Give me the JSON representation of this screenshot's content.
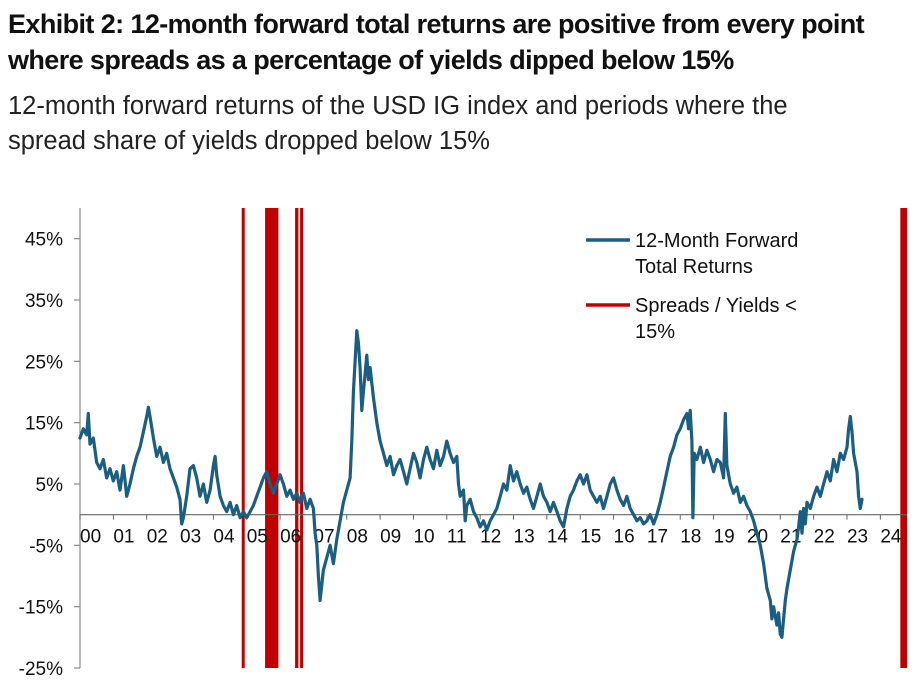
{
  "header": {
    "title": "Exhibit 2: 12-month forward total returns are positive from every point where spreads as a percentage of yields dipped below 15%",
    "subtitle": "12-month forward returns of the USD IG index and periods where the spread share of yields dropped below 15%"
  },
  "chart_data": {
    "type": "line",
    "title": "12-month forward returns of the USD IG index and periods where the spread share of yields dropped below 15%",
    "xlabel": "",
    "ylabel": "",
    "xlim": [
      0,
      24.8
    ],
    "ylim": [
      -25,
      50
    ],
    "y_ticks": [
      45,
      35,
      25,
      15,
      5,
      -5,
      -15,
      -25
    ],
    "y_tick_labels": [
      "45%",
      "35%",
      "25%",
      "15%",
      "5%",
      "-5%",
      "-15%",
      "-25%"
    ],
    "x_ticks": [
      0,
      1,
      2,
      3,
      4,
      5,
      6,
      7,
      8,
      9,
      10,
      11,
      12,
      13,
      14,
      15,
      16,
      17,
      18,
      19,
      20,
      21,
      22,
      23,
      24
    ],
    "x_tick_labels": [
      "00",
      "01",
      "02",
      "03",
      "04",
      "05",
      "06",
      "07",
      "08",
      "09",
      "10",
      "11",
      "12",
      "13",
      "14",
      "15",
      "16",
      "17",
      "18",
      "19",
      "20",
      "21",
      "22",
      "23",
      "24"
    ],
    "legend": {
      "position": "top-right",
      "entries": [
        {
          "label_line1": "12-Month Forward",
          "label_line2": "Total Returns"
        },
        {
          "label_line1": "Spreads / Yields <",
          "label_line2": "15%"
        }
      ]
    },
    "series": [
      {
        "name": "12-Month Forward Total Returns",
        "color": "#1b5e82",
        "points": [
          [
            0.0,
            12.5
          ],
          [
            0.1,
            14.0
          ],
          [
            0.2,
            13.0
          ],
          [
            0.25,
            16.5
          ],
          [
            0.3,
            11.5
          ],
          [
            0.4,
            12.5
          ],
          [
            0.5,
            8.5
          ],
          [
            0.6,
            7.5
          ],
          [
            0.7,
            9.0
          ],
          [
            0.8,
            6.0
          ],
          [
            0.9,
            7.5
          ],
          [
            1.0,
            5.5
          ],
          [
            1.1,
            7.0
          ],
          [
            1.2,
            4.0
          ],
          [
            1.3,
            8.0
          ],
          [
            1.4,
            3.0
          ],
          [
            1.5,
            5.0
          ],
          [
            1.6,
            7.5
          ],
          [
            1.7,
            9.5
          ],
          [
            1.8,
            11.0
          ],
          [
            1.9,
            13.5
          ],
          [
            2.0,
            16.0
          ],
          [
            2.05,
            17.5
          ],
          [
            2.1,
            16.0
          ],
          [
            2.2,
            12.5
          ],
          [
            2.3,
            9.5
          ],
          [
            2.4,
            11.0
          ],
          [
            2.5,
            8.5
          ],
          [
            2.6,
            10.0
          ],
          [
            2.7,
            7.5
          ],
          [
            2.8,
            6.0
          ],
          [
            2.9,
            4.5
          ],
          [
            3.0,
            2.5
          ],
          [
            3.05,
            -1.5
          ],
          [
            3.1,
            -0.5
          ],
          [
            3.2,
            3.0
          ],
          [
            3.3,
            7.5
          ],
          [
            3.4,
            8.0
          ],
          [
            3.5,
            6.0
          ],
          [
            3.6,
            3.0
          ],
          [
            3.7,
            5.0
          ],
          [
            3.8,
            2.0
          ],
          [
            3.9,
            4.0
          ],
          [
            4.0,
            8.0
          ],
          [
            4.05,
            9.5
          ],
          [
            4.1,
            6.5
          ],
          [
            4.2,
            3.0
          ],
          [
            4.3,
            1.5
          ],
          [
            4.4,
            0.5
          ],
          [
            4.5,
            2.0
          ],
          [
            4.6,
            0.0
          ],
          [
            4.7,
            1.5
          ],
          [
            4.8,
            -0.5
          ],
          [
            4.9,
            0.5
          ],
          [
            5.0,
            -0.5
          ],
          [
            5.1,
            0.5
          ],
          [
            5.2,
            1.5
          ],
          [
            5.3,
            3.0
          ],
          [
            5.4,
            4.5
          ],
          [
            5.5,
            6.0
          ],
          [
            5.6,
            7.0
          ],
          [
            5.7,
            5.0
          ],
          [
            5.8,
            3.5
          ],
          [
            5.9,
            5.0
          ],
          [
            6.0,
            6.5
          ],
          [
            6.1,
            5.0
          ],
          [
            6.2,
            3.0
          ],
          [
            6.3,
            4.0
          ],
          [
            6.4,
            2.5
          ],
          [
            6.5,
            3.5
          ],
          [
            6.6,
            2.0
          ],
          [
            6.7,
            3.5
          ],
          [
            6.8,
            1.0
          ],
          [
            6.9,
            2.5
          ],
          [
            7.0,
            1.0
          ],
          [
            7.05,
            -3.0
          ],
          [
            7.1,
            -5.0
          ],
          [
            7.15,
            -10.0
          ],
          [
            7.2,
            -14.0
          ],
          [
            7.3,
            -9.0
          ],
          [
            7.4,
            -7.0
          ],
          [
            7.5,
            -5.0
          ],
          [
            7.6,
            -8.0
          ],
          [
            7.7,
            -4.0
          ],
          [
            7.8,
            -1.0
          ],
          [
            7.9,
            2.0
          ],
          [
            8.0,
            4.0
          ],
          [
            8.1,
            6.0
          ],
          [
            8.15,
            12.0
          ],
          [
            8.2,
            20.0
          ],
          [
            8.25,
            25.0
          ],
          [
            8.3,
            30.0
          ],
          [
            8.35,
            28.0
          ],
          [
            8.4,
            24.0
          ],
          [
            8.45,
            17.0
          ],
          [
            8.5,
            20.0
          ],
          [
            8.55,
            23.0
          ],
          [
            8.6,
            26.0
          ],
          [
            8.65,
            22.0
          ],
          [
            8.7,
            24.0
          ],
          [
            8.8,
            19.0
          ],
          [
            8.9,
            15.0
          ],
          [
            9.0,
            12.0
          ],
          [
            9.1,
            10.0
          ],
          [
            9.2,
            8.0
          ],
          [
            9.3,
            9.5
          ],
          [
            9.4,
            6.5
          ],
          [
            9.5,
            8.0
          ],
          [
            9.6,
            9.0
          ],
          [
            9.7,
            7.0
          ],
          [
            9.8,
            5.0
          ],
          [
            9.9,
            7.5
          ],
          [
            10.0,
            10.0
          ],
          [
            10.1,
            8.5
          ],
          [
            10.2,
            6.0
          ],
          [
            10.3,
            9.0
          ],
          [
            10.4,
            11.0
          ],
          [
            10.5,
            9.0
          ],
          [
            10.6,
            7.5
          ],
          [
            10.7,
            10.5
          ],
          [
            10.8,
            8.0
          ],
          [
            10.9,
            9.5
          ],
          [
            11.0,
            12.0
          ],
          [
            11.1,
            10.0
          ],
          [
            11.2,
            8.5
          ],
          [
            11.3,
            9.5
          ],
          [
            11.35,
            5.0
          ],
          [
            11.4,
            3.0
          ],
          [
            11.5,
            4.0
          ],
          [
            11.55,
            -1.0
          ],
          [
            11.6,
            1.5
          ],
          [
            11.7,
            2.5
          ],
          [
            11.8,
            0.5
          ],
          [
            11.9,
            -0.5
          ],
          [
            12.0,
            -2.0
          ],
          [
            12.1,
            -1.0
          ],
          [
            12.2,
            -2.5
          ],
          [
            12.3,
            -1.0
          ],
          [
            12.4,
            0.0
          ],
          [
            12.5,
            1.0
          ],
          [
            12.6,
            3.0
          ],
          [
            12.7,
            5.0
          ],
          [
            12.8,
            4.0
          ],
          [
            12.9,
            8.0
          ],
          [
            13.0,
            5.5
          ],
          [
            13.1,
            7.0
          ],
          [
            13.2,
            5.0
          ],
          [
            13.3,
            3.5
          ],
          [
            13.4,
            4.5
          ],
          [
            13.5,
            2.5
          ],
          [
            13.6,
            1.0
          ],
          [
            13.7,
            3.0
          ],
          [
            13.8,
            5.0
          ],
          [
            13.9,
            3.0
          ],
          [
            14.0,
            2.0
          ],
          [
            14.1,
            0.5
          ],
          [
            14.2,
            2.0
          ],
          [
            14.3,
            0.5
          ],
          [
            14.4,
            -1.0
          ],
          [
            14.5,
            -2.0
          ],
          [
            14.6,
            1.0
          ],
          [
            14.7,
            3.0
          ],
          [
            14.8,
            4.0
          ],
          [
            14.9,
            5.5
          ],
          [
            15.0,
            6.5
          ],
          [
            15.1,
            5.0
          ],
          [
            15.2,
            6.5
          ],
          [
            15.3,
            4.0
          ],
          [
            15.4,
            3.0
          ],
          [
            15.5,
            2.0
          ],
          [
            15.6,
            3.0
          ],
          [
            15.7,
            1.0
          ],
          [
            15.8,
            3.0
          ],
          [
            15.9,
            5.0
          ],
          [
            16.0,
            6.0
          ],
          [
            16.1,
            4.0
          ],
          [
            16.2,
            2.5
          ],
          [
            16.3,
            1.5
          ],
          [
            16.4,
            3.0
          ],
          [
            16.5,
            1.0
          ],
          [
            16.6,
            0.0
          ],
          [
            16.7,
            -1.0
          ],
          [
            16.8,
            -0.5
          ],
          [
            16.9,
            -1.5
          ],
          [
            17.0,
            -1.0
          ],
          [
            17.1,
            0.0
          ],
          [
            17.2,
            -1.5
          ],
          [
            17.3,
            0.0
          ],
          [
            17.4,
            2.0
          ],
          [
            17.5,
            4.5
          ],
          [
            17.6,
            7.0
          ],
          [
            17.7,
            9.5
          ],
          [
            17.8,
            11.0
          ],
          [
            17.9,
            13.0
          ],
          [
            18.0,
            14.0
          ],
          [
            18.1,
            15.5
          ],
          [
            18.2,
            16.5
          ],
          [
            18.25,
            14.0
          ],
          [
            18.3,
            17.0
          ],
          [
            18.35,
            12.0
          ],
          [
            18.38,
            -0.5
          ],
          [
            18.42,
            10.0
          ],
          [
            18.5,
            9.0
          ],
          [
            18.6,
            11.0
          ],
          [
            18.7,
            8.5
          ],
          [
            18.8,
            10.5
          ],
          [
            18.9,
            9.0
          ],
          [
            19.0,
            7.0
          ],
          [
            19.1,
            9.0
          ],
          [
            19.2,
            8.5
          ],
          [
            19.3,
            6.0
          ],
          [
            19.35,
            16.5
          ],
          [
            19.4,
            8.0
          ],
          [
            19.5,
            5.0
          ],
          [
            19.6,
            3.5
          ],
          [
            19.7,
            4.5
          ],
          [
            19.8,
            2.0
          ],
          [
            19.9,
            3.0
          ],
          [
            20.0,
            1.5
          ],
          [
            20.1,
            0.5
          ],
          [
            20.2,
            -1.0
          ],
          [
            20.3,
            -3.0
          ],
          [
            20.4,
            -5.0
          ],
          [
            20.5,
            -8.0
          ],
          [
            20.6,
            -12.0
          ],
          [
            20.7,
            -14.0
          ],
          [
            20.75,
            -17.0
          ],
          [
            20.8,
            -15.0
          ],
          [
            20.9,
            -18.0
          ],
          [
            20.95,
            -16.0
          ],
          [
            21.0,
            -19.5
          ],
          [
            21.05,
            -20.0
          ],
          [
            21.1,
            -17.0
          ],
          [
            21.15,
            -14.0
          ],
          [
            21.2,
            -12.0
          ],
          [
            21.3,
            -9.0
          ],
          [
            21.4,
            -6.0
          ],
          [
            21.5,
            -4.0
          ],
          [
            21.55,
            -2.0
          ],
          [
            21.6,
            0.5
          ],
          [
            21.65,
            -3.0
          ],
          [
            21.7,
            1.0
          ],
          [
            21.75,
            -1.5
          ],
          [
            21.8,
            2.0
          ],
          [
            21.9,
            1.0
          ],
          [
            22.0,
            3.0
          ],
          [
            22.1,
            4.5
          ],
          [
            22.2,
            3.0
          ],
          [
            22.3,
            5.0
          ],
          [
            22.4,
            7.0
          ],
          [
            22.5,
            5.5
          ],
          [
            22.6,
            9.0
          ],
          [
            22.7,
            7.0
          ],
          [
            22.8,
            10.0
          ],
          [
            22.9,
            9.0
          ],
          [
            23.0,
            11.0
          ],
          [
            23.05,
            14.0
          ],
          [
            23.1,
            16.0
          ],
          [
            23.15,
            13.5
          ],
          [
            23.2,
            10.0
          ],
          [
            23.3,
            7.0
          ],
          [
            23.35,
            3.0
          ],
          [
            23.4,
            1.0
          ],
          [
            23.45,
            2.5
          ]
        ]
      },
      {
        "name": "Spreads / Yields < 15%",
        "color": "#c00000",
        "periods": [
          [
            4.85,
            4.92
          ],
          [
            5.55,
            5.95
          ],
          [
            6.45,
            6.55
          ],
          [
            6.6,
            6.68
          ],
          [
            24.6,
            24.8
          ]
        ]
      }
    ]
  }
}
